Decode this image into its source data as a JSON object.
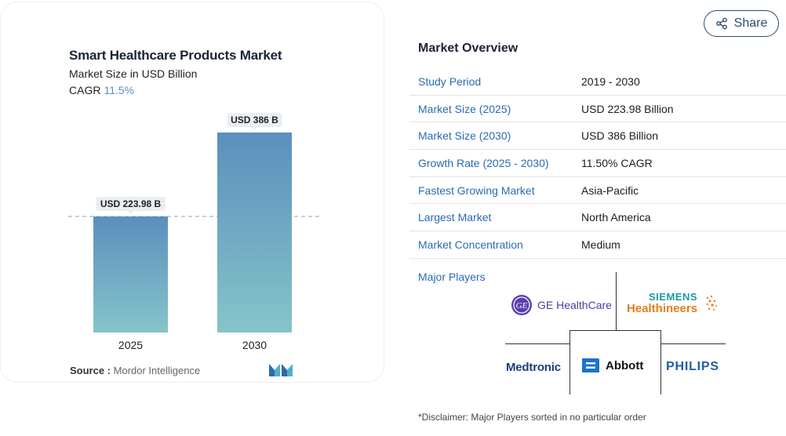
{
  "chart_data": {
    "type": "bar",
    "title": "Smart Healthcare Products Market",
    "subtitle": "Market Size in USD Billion",
    "cagr_label": "CAGR",
    "cagr_value": "11.5%",
    "categories": [
      "2025",
      "2030"
    ],
    "values": [
      223.98,
      386
    ],
    "data_labels": [
      "USD 223.98 B",
      "USD 386 B"
    ],
    "ylim": [
      0,
      386
    ],
    "reference_line": 223.98,
    "colors": {
      "bar_top": "#5b8fbd",
      "bar_bottom": "#86c4c9",
      "label_bg": "#e9eef3",
      "reference_line": "#7aa6cc"
    },
    "source_label": "Source :",
    "source_value": "Mordor Intelligence"
  },
  "share": {
    "label": "Share",
    "icon": "share-icon"
  },
  "overview": {
    "title": "Market Overview",
    "rows": [
      {
        "key": "Study Period",
        "value": "2019 - 2030"
      },
      {
        "key": "Market Size (2025)",
        "value": "USD 223.98 Billion"
      },
      {
        "key": "Market Size (2030)",
        "value": "USD 386 Billion"
      },
      {
        "key": "Growth Rate (2025 - 2030)",
        "value": "11.50% CAGR"
      },
      {
        "key": "Fastest Growing Market",
        "value": "Asia-Pacific"
      },
      {
        "key": "Largest Market",
        "value": "North America"
      },
      {
        "key": "Market Concentration",
        "value": "Medium"
      }
    ]
  },
  "players": {
    "label": "Major Players",
    "ge": "GE HealthCare",
    "siemens_top": "SIEMENS",
    "siemens_bottom": "Healthineers",
    "medtronic": "Medtronic",
    "abbott": "Abbott",
    "philips": "PHILIPS"
  },
  "disclaimer": "*Disclaimer: Major Players sorted in no particular order"
}
